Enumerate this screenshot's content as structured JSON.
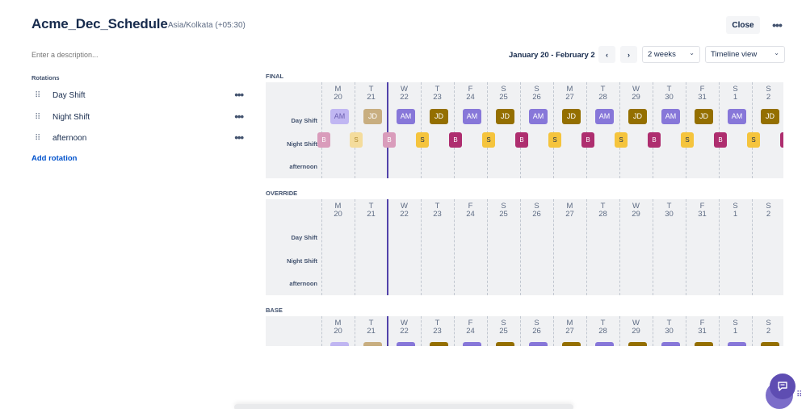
{
  "header": {
    "title": "Acme_Dec_Schedule",
    "timezone": "Asia/Kolkata (+05:30)",
    "close_label": "Close",
    "more_icon": "more-horizontal-icon"
  },
  "description": {
    "placeholder": "Enter a description..."
  },
  "rotations": {
    "heading": "Rotations",
    "items": [
      {
        "label": "Day Shift"
      },
      {
        "label": "Night Shift"
      },
      {
        "label": "afternoon"
      }
    ],
    "add_label": "Add rotation"
  },
  "toolbar": {
    "date_range": "January 20 - February 2",
    "prev_icon": "chevron-left-icon",
    "next_icon": "chevron-right-icon",
    "period_select": "2 weeks",
    "view_select": "Timeline view"
  },
  "days": [
    {
      "dow": "M",
      "date": "20"
    },
    {
      "dow": "T",
      "date": "21"
    },
    {
      "dow": "W",
      "date": "22"
    },
    {
      "dow": "T",
      "date": "23"
    },
    {
      "dow": "F",
      "date": "24"
    },
    {
      "dow": "S",
      "date": "25"
    },
    {
      "dow": "S",
      "date": "26"
    },
    {
      "dow": "M",
      "date": "27"
    },
    {
      "dow": "T",
      "date": "28"
    },
    {
      "dow": "W",
      "date": "29"
    },
    {
      "dow": "T",
      "date": "30"
    },
    {
      "dow": "F",
      "date": "31"
    },
    {
      "dow": "S",
      "date": "1"
    },
    {
      "dow": "S",
      "date": "2"
    }
  ],
  "row_labels": [
    "Day Shift",
    "Night Shift",
    "afternoon"
  ],
  "sections": [
    {
      "label": "FINAL",
      "day_shift": [
        "AM",
        "JD",
        "AM",
        "JD",
        "AM",
        "JD",
        "AM",
        "JD",
        "AM",
        "JD",
        "AM",
        "JD",
        "AM",
        "JD"
      ],
      "night_shift": [
        "B",
        "S",
        "B",
        "S",
        "B",
        "S",
        "B",
        "S",
        "B",
        "S",
        "B",
        "S",
        "B",
        "S",
        "B"
      ]
    },
    {
      "label": "OVERRIDE",
      "day_shift": [],
      "night_shift": []
    },
    {
      "label": "BASE",
      "day_shift": [],
      "night_shift": []
    }
  ],
  "colors": {
    "am": "#8777d9",
    "am_past": "#c0b6f2",
    "jd": "#946f00",
    "jd_past": "#c8ae80",
    "s": "#f5c43d",
    "s_past": "#f4dc9c",
    "b": "#ae2e6f",
    "b_past": "#d99cbb",
    "today_line": "#5243aa"
  },
  "chat_icon": "chat-icon"
}
